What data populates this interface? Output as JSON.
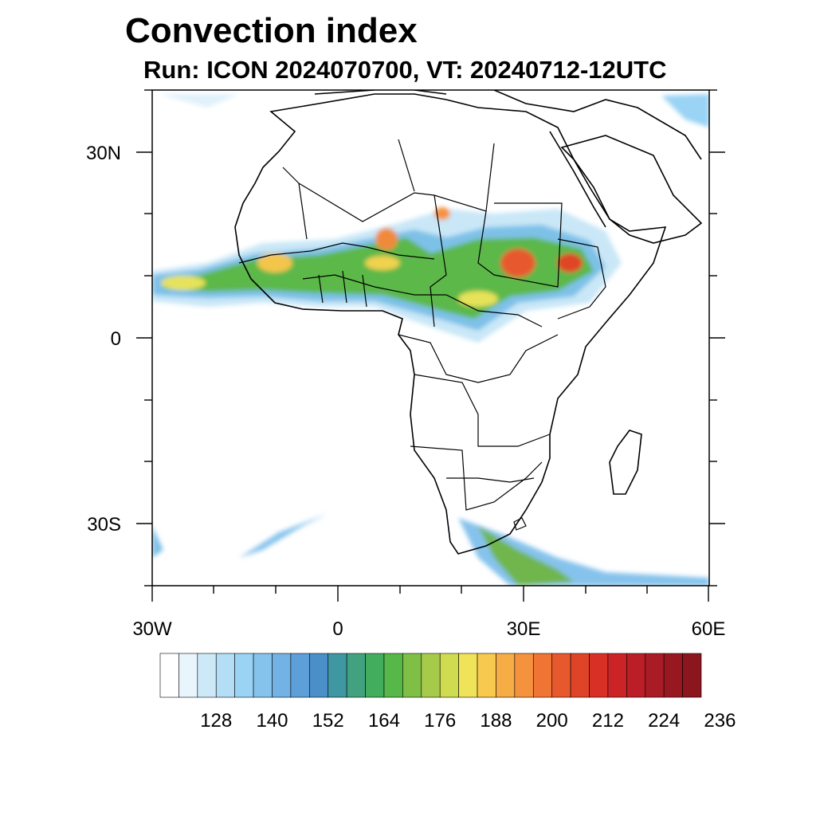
{
  "title": "Convection index",
  "subtitle": "Run: ICON 2024070700,  VT: 20240712-12UTC",
  "map": {
    "lon_range": [
      -30,
      60
    ],
    "lat_range": [
      -40,
      40
    ],
    "lat_ticks": [
      {
        "value": 30,
        "label": "30N"
      },
      {
        "value": 0,
        "label": "0"
      },
      {
        "value": -30,
        "label": "30S"
      }
    ],
    "lon_ticks": [
      {
        "value": -30,
        "label": "30W"
      },
      {
        "value": 0,
        "label": "0"
      },
      {
        "value": 30,
        "label": "30E"
      },
      {
        "value": 60,
        "label": "60E"
      }
    ]
  },
  "colorbar": {
    "labels": [
      "128",
      "140",
      "152",
      "164",
      "176",
      "188",
      "200",
      "212",
      "224",
      "236"
    ],
    "colors": [
      "#ffffff",
      "#e8f5fc",
      "#cde9f8",
      "#b4def6",
      "#9ad3f4",
      "#86c3ec",
      "#72b2e4",
      "#5d9fd8",
      "#4a8fc8",
      "#3f97a2",
      "#42a280",
      "#43ad5e",
      "#55b849",
      "#7fbf46",
      "#a6ca4a",
      "#cfdc50",
      "#efe35a",
      "#f7c94e",
      "#f6ad45",
      "#f5923d",
      "#f07535",
      "#e8582d",
      "#e04428",
      "#d93026",
      "#cc2327",
      "#bb1e27",
      "#a91b25",
      "#981822",
      "#8b161e"
    ]
  }
}
